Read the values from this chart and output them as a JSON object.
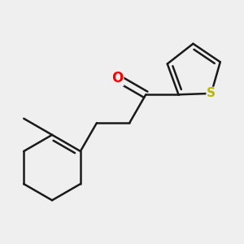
{
  "background_color": "#efefef",
  "bond_color": "#1a1a1a",
  "bond_width": 1.8,
  "O_color": "#ff0000",
  "S_color": "#b8b800",
  "figsize": [
    3.0,
    3.0
  ],
  "dpi": 100
}
